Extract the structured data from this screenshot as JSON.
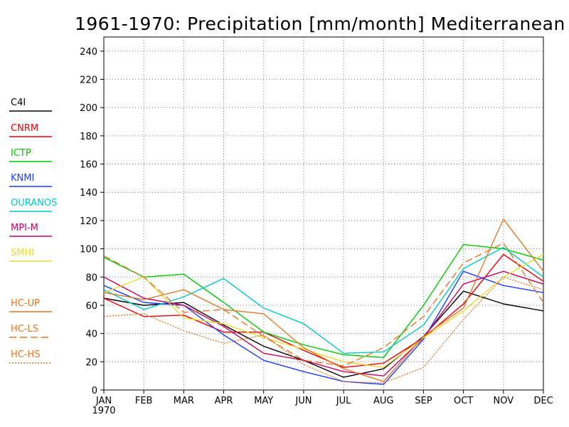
{
  "chart_data": {
    "type": "line",
    "title": "1961-1970: Precipitation [mm/month] Mediterranean (MD)",
    "categories": [
      "JAN",
      "FEB",
      "MAR",
      "APR",
      "MAY",
      "JUN",
      "JUL",
      "AUG",
      "SEP",
      "OCT",
      "NOV",
      "DEC"
    ],
    "x_sublabel": "1970",
    "ylim": [
      0,
      250
    ],
    "yticks": [
      0,
      20,
      40,
      60,
      80,
      100,
      120,
      140,
      160,
      180,
      200,
      220,
      240
    ],
    "ytick_labels": [
      "0",
      "20",
      "40",
      "60",
      "80",
      "100",
      "120",
      "140",
      "160",
      "180",
      "200",
      "220",
      "240"
    ],
    "grid": true,
    "legend_position": "left",
    "series": [
      {
        "name": "C4I",
        "color": "#000000",
        "style": "solid",
        "values": [
          65,
          60,
          62,
          46,
          31,
          21,
          9,
          15,
          38,
          70,
          61,
          56
        ]
      },
      {
        "name": "CNRM",
        "color": "#e8000b",
        "style": "solid",
        "values": [
          65,
          52,
          53,
          41,
          41,
          28,
          16,
          19,
          37,
          61,
          96,
          77
        ]
      },
      {
        "name": "ICTP",
        "color": "#00c800",
        "style": "solid",
        "values": [
          94,
          80,
          82,
          62,
          41,
          32,
          25,
          23,
          60,
          103,
          100,
          92
        ]
      },
      {
        "name": "KNMI",
        "color": "#1e3cff",
        "style": "solid",
        "values": [
          74,
          62,
          60,
          39,
          21,
          13,
          6,
          4,
          36,
          84,
          74,
          69
        ]
      },
      {
        "name": "OURANOS",
        "color": "#00c8c8",
        "style": "solid",
        "values": [
          71,
          57,
          66,
          79,
          58,
          47,
          26,
          27,
          46,
          86,
          101,
          80
        ]
      },
      {
        "name": "MPI-M",
        "color": "#c80064",
        "style": "solid",
        "values": [
          80,
          65,
          60,
          45,
          26,
          21,
          13,
          10,
          37,
          75,
          84,
          75
        ]
      },
      {
        "name": "SMHI",
        "color": "#e6dc32",
        "style": "solid",
        "values": [
          69,
          80,
          51,
          47,
          37,
          29,
          20,
          16,
          37,
          56,
          80,
          96
        ]
      },
      {
        "name": "HC-UP",
        "color": "#e07828",
        "style": "solid",
        "values": [
          69,
          64,
          71,
          57,
          54,
          30,
          15,
          6,
          38,
          58,
          121,
          84
        ]
      },
      {
        "name": "HC-LS",
        "color": "#e07828",
        "style": "dashed",
        "values": [
          95,
          80,
          55,
          57,
          38,
          21,
          17,
          30,
          52,
          90,
          104,
          62
        ]
      },
      {
        "name": "HC-HS",
        "color": "#e07828",
        "style": "dotted",
        "values": [
          52,
          54,
          42,
          33,
          39,
          18,
          6,
          5,
          16,
          50,
          80,
          71
        ]
      }
    ]
  }
}
